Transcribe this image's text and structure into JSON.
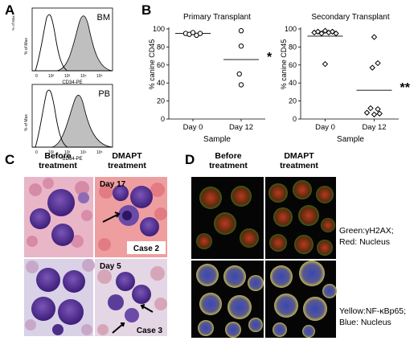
{
  "panels": {
    "A": {
      "letter": "A",
      "hist_top": {
        "label": "BM",
        "ylabel": "% of Max",
        "xlabel": "CD34-PE",
        "ticks": [
          "0",
          "10²",
          "10³",
          "10⁴",
          "10⁵"
        ]
      },
      "hist_bottom": {
        "label": "PB",
        "ylabel": "% of Max",
        "xlabel": "CD34-PE",
        "ticks": [
          "0",
          "10²",
          "10³",
          "10⁴",
          "10⁵"
        ]
      }
    },
    "B": {
      "letter": "B"
    },
    "C": {
      "letter": "C",
      "col1": "Before\ntreatment",
      "col2": "DMAPT\ntreatment",
      "day_top": "Day 17",
      "day_bottom": "Day 5",
      "case_top": "Case 2",
      "case_bottom": "Case 3"
    },
    "D": {
      "letter": "D",
      "col1": "Before\ntreatment",
      "col2": "DMAPT\ntreatment",
      "legend_top_1": "Green:γH2AX;",
      "legend_top_2": "Red: Nucleus",
      "legend_bottom_1": "Yellow:NF-κBp65;",
      "legend_bottom_2": "Blue: Nucleus"
    }
  },
  "chart_data": [
    {
      "type": "scatter",
      "title": "Primary Transplant",
      "xlabel": "Sample",
      "ylabel": "% canine CD45",
      "categories": [
        "Day 0",
        "Day 12"
      ],
      "ylim": [
        0,
        100
      ],
      "yticks": [
        0,
        20,
        40,
        60,
        80,
        100
      ],
      "marker": "circle",
      "points": [
        {
          "cat": 0,
          "offset": -2,
          "y": 95
        },
        {
          "cat": 0,
          "offset": -1,
          "y": 94
        },
        {
          "cat": 0,
          "offset": 0,
          "y": 96
        },
        {
          "cat": 0,
          "offset": 1,
          "y": 93
        },
        {
          "cat": 0,
          "offset": 2,
          "y": 95
        },
        {
          "cat": 1,
          "offset": 0,
          "y": 98
        },
        {
          "cat": 1,
          "offset": 0,
          "y": 81
        },
        {
          "cat": 1,
          "offset": -0.5,
          "y": 50
        },
        {
          "cat": 1,
          "offset": 0,
          "y": 38
        }
      ],
      "means": [
        {
          "cat": 0,
          "y": 95
        },
        {
          "cat": 1,
          "y": 66
        }
      ],
      "significance": {
        "cat": 1,
        "label": "*"
      }
    },
    {
      "type": "scatter",
      "title": "Secondary Transplant",
      "xlabel": "Sample",
      "ylabel": "% canine CD45",
      "categories": [
        "Day 0",
        "Day 12"
      ],
      "ylim": [
        0,
        100
      ],
      "yticks": [
        0,
        20,
        40,
        60,
        80,
        100
      ],
      "marker": "diamond",
      "points": [
        {
          "cat": 0,
          "offset": -3,
          "y": 96
        },
        {
          "cat": 0,
          "offset": -2,
          "y": 97
        },
        {
          "cat": 0,
          "offset": -1,
          "y": 95
        },
        {
          "cat": 0,
          "offset": 0,
          "y": 98
        },
        {
          "cat": 0,
          "offset": 1,
          "y": 96
        },
        {
          "cat": 0,
          "offset": 2,
          "y": 97
        },
        {
          "cat": 0,
          "offset": 3,
          "y": 95
        },
        {
          "cat": 0,
          "offset": 0,
          "y": 61
        },
        {
          "cat": 1,
          "offset": 0,
          "y": 91
        },
        {
          "cat": 1,
          "offset": 1,
          "y": 62
        },
        {
          "cat": 1,
          "offset": -0.5,
          "y": 57
        },
        {
          "cat": 1,
          "offset": -1,
          "y": 12
        },
        {
          "cat": 1,
          "offset": 1,
          "y": 11
        },
        {
          "cat": 1,
          "offset": -2,
          "y": 7
        },
        {
          "cat": 1,
          "offset": 0,
          "y": 5
        },
        {
          "cat": 1,
          "offset": 1.5,
          "y": 6
        }
      ],
      "means": [
        {
          "cat": 0,
          "y": 92
        },
        {
          "cat": 1,
          "y": 32
        }
      ],
      "significance": {
        "cat": 1,
        "label": "**"
      }
    }
  ]
}
